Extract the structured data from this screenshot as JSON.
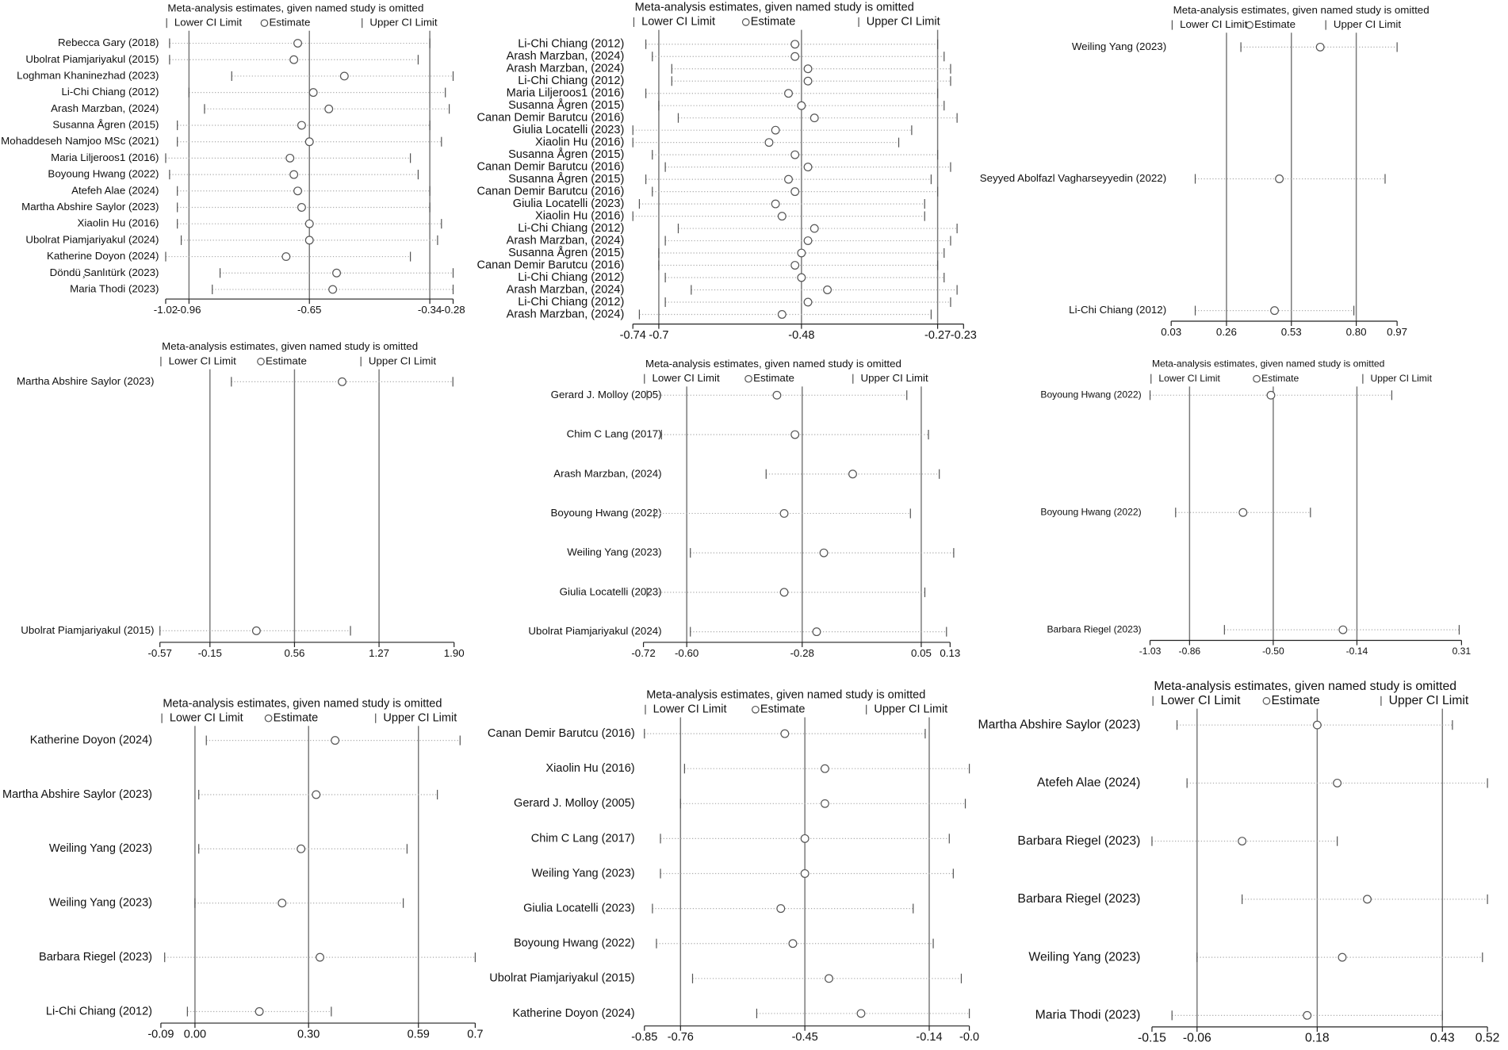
{
  "chart_data": [
    {
      "type": "forest",
      "title": "Meta-analysis estimates, given named study is omitted",
      "categories": [
        "Rebecca Gary (2018)",
        "Ubolrat Piamjariyakul (2015)",
        "Loghman Khaninezhad (2023)",
        "Li-Chi Chiang (2012)",
        "Arash Marzban, (2024)",
        "Susanna Ågren (2015)",
        "Mohaddeseh Namjoo MSc (2021)",
        "Maria Liljeroos1 (2016)",
        "Boyoung Hwang (2022)",
        "Atefeh Alae (2024)",
        "Martha Abshire Saylor (2023)",
        "Xiaolin Hu (2016)",
        "Ubolrat Piamjariyakul (2024)",
        "Katherine Doyon (2024)",
        "Döndü ̧Sanlıtürk (2023)",
        "Maria Thodi (2023)"
      ],
      "series": [
        {
          "name": "Lower CI Limit",
          "values": [
            -1.01,
            -1.01,
            -0.85,
            -0.96,
            -0.92,
            -0.99,
            -0.99,
            -1.02,
            -1.01,
            -0.99,
            -0.99,
            -0.99,
            -0.98,
            -1.02,
            -0.88,
            -0.9
          ]
        },
        {
          "name": "Estimate",
          "values": [
            -0.68,
            -0.69,
            -0.56,
            -0.64,
            -0.6,
            -0.67,
            -0.65,
            -0.7,
            -0.69,
            -0.68,
            -0.67,
            -0.65,
            -0.65,
            -0.71,
            -0.58,
            -0.59
          ]
        },
        {
          "name": "Upper CI Limit",
          "values": [
            -0.34,
            -0.37,
            -0.28,
            -0.3,
            -0.29,
            -0.34,
            -0.31,
            -0.39,
            -0.37,
            -0.34,
            -0.34,
            -0.31,
            -0.32,
            -0.39,
            -0.28,
            -0.28
          ]
        }
      ],
      "xlim": [
        -1.02,
        -0.28
      ],
      "xticks": [
        -1.02,
        -0.96,
        -0.65,
        -0.34,
        -0.28
      ]
    },
    {
      "type": "forest",
      "title": "Meta-analysis estimates, given named study is omitted",
      "categories": [
        "Li-Chi Chiang (2012)",
        "Arash Marzban, (2024)",
        "Arash Marzban, (2024)",
        "Li-Chi Chiang (2012)",
        "Maria Liljeroos1 (2016)",
        "Susanna Ågren (2015)",
        "Canan Demir Barutcu (2016)",
        "Giulia Locatelli (2023)",
        "Xiaolin Hu (2016)",
        "Susanna Ågren (2015)",
        "Canan Demir Barutcu (2016)",
        "Susanna Ågren (2015)",
        "Canan Demir Barutcu (2016)",
        "Giulia Locatelli (2023)",
        "Xiaolin Hu (2016)",
        "Li-Chi Chiang (2012)",
        "Arash Marzban, (2024)",
        "Susanna Ågren (2015)",
        "Canan Demir Barutcu (2016)",
        "Li-Chi Chiang (2012)",
        "Arash Marzban, (2024)",
        "Li-Chi Chiang (2012)",
        "Arash Marzban, (2024)"
      ],
      "series": [
        {
          "name": "Lower CI Limit",
          "values": [
            -0.72,
            -0.71,
            -0.68,
            -0.68,
            -0.72,
            -0.7,
            -0.67,
            -0.74,
            -0.74,
            -0.71,
            -0.69,
            -0.72,
            -0.71,
            -0.73,
            -0.74,
            -0.67,
            -0.69,
            -0.7,
            -0.7,
            -0.69,
            -0.65,
            -0.69,
            -0.73
          ]
        },
        {
          "name": "Estimate",
          "values": [
            -0.49,
            -0.49,
            -0.47,
            -0.47,
            -0.5,
            -0.48,
            -0.46,
            -0.52,
            -0.53,
            -0.49,
            -0.47,
            -0.5,
            -0.49,
            -0.52,
            -0.51,
            -0.46,
            -0.47,
            -0.48,
            -0.49,
            -0.48,
            -0.44,
            -0.47,
            -0.51
          ]
        },
        {
          "name": "Upper CI Limit",
          "values": [
            -0.27,
            -0.26,
            -0.25,
            -0.25,
            -0.27,
            -0.26,
            -0.24,
            -0.31,
            -0.33,
            -0.27,
            -0.25,
            -0.28,
            -0.27,
            -0.29,
            -0.29,
            -0.24,
            -0.25,
            -0.26,
            -0.27,
            -0.26,
            -0.24,
            -0.25,
            -0.28
          ]
        }
      ],
      "xlim": [
        -0.74,
        -0.23
      ],
      "xticks": [
        -0.74,
        -0.7,
        -0.48,
        -0.27,
        -0.23
      ]
    },
    {
      "type": "forest",
      "title": "Meta-analysis estimates, given named study is omitted",
      "categories": [
        "Weiling Yang (2023)",
        "Seyyed Abolfazl Vagharseyyedin (2022)",
        "Li-Chi Chiang (2012)"
      ],
      "series": [
        {
          "name": "Lower CI Limit",
          "values": [
            0.32,
            0.13,
            0.13
          ]
        },
        {
          "name": "Estimate",
          "values": [
            0.65,
            0.48,
            0.46
          ]
        },
        {
          "name": "Upper CI Limit",
          "values": [
            0.97,
            0.92,
            0.79
          ]
        }
      ],
      "xlim": [
        0.03,
        0.97
      ],
      "xticks": [
        0.03,
        0.26,
        0.53,
        {
          "value": 0.8,
          "label": "0.80"
        },
        0.97
      ]
    },
    {
      "type": "forest",
      "title": "Meta-analysis estimates, given named study is omitted",
      "categories": [
        "Martha Abshire Saylor (2023)",
        "Ubolrat Piamjariyakul (2015)"
      ],
      "series": [
        {
          "name": "Lower CI Limit",
          "values": [
            0.03,
            -0.57
          ]
        },
        {
          "name": "Estimate",
          "values": [
            0.96,
            0.24
          ]
        },
        {
          "name": "Upper CI Limit",
          "values": [
            1.89,
            1.03
          ]
        }
      ],
      "xlim": [
        -0.57,
        1.9
      ],
      "xticks": [
        -0.57,
        -0.15,
        0.56,
        1.27,
        {
          "value": 1.9,
          "label": "1.90"
        }
      ]
    },
    {
      "type": "forest",
      "title": "Meta-analysis estimates, given named study is omitted",
      "categories": [
        "Gerard J. Molloy (2005)",
        "Chim C Lang (2017)",
        "Arash Marzban, (2024)",
        "Boyoung Hwang (2022)",
        "Weiling Yang (2023)",
        "Giulia Locatelli (2023)",
        "Ubolrat Piamjariyakul (2024)"
      ],
      "series": [
        {
          "name": "Lower CI Limit",
          "values": [
            -0.71,
            -0.67,
            -0.38,
            -0.69,
            -0.59,
            -0.71,
            -0.59
          ]
        },
        {
          "name": "Estimate",
          "values": [
            -0.35,
            -0.3,
            -0.14,
            -0.33,
            -0.22,
            -0.33,
            -0.24
          ]
        },
        {
          "name": "Upper CI Limit",
          "values": [
            0.01,
            0.07,
            0.1,
            0.02,
            0.14,
            0.06,
            0.12
          ]
        }
      ],
      "xlim": [
        -0.72,
        0.13
      ],
      "xticks": [
        -0.72,
        {
          "value": -0.6,
          "label": "-0.60"
        },
        -0.28,
        0.05,
        0.13
      ]
    },
    {
      "type": "forest",
      "title": "Meta-analysis estimates, given named study is omitted",
      "categories": [
        "Boyoung Hwang (2022)",
        "Boyoung Hwang (2022)",
        "Barbara Riegel (2023)"
      ],
      "series": [
        {
          "name": "Lower CI Limit",
          "values": [
            -1.03,
            -0.92,
            -0.71
          ]
        },
        {
          "name": "Estimate",
          "values": [
            -0.51,
            -0.63,
            -0.2
          ]
        },
        {
          "name": "Upper CI Limit",
          "values": [
            0.01,
            -0.34,
            0.3
          ]
        }
      ],
      "xlim": [
        -1.03,
        0.31
      ],
      "xticks": [
        -1.03,
        -0.86,
        {
          "value": -0.5,
          "label": "-0.50"
        },
        -0.14,
        0.31
      ]
    },
    {
      "type": "forest",
      "title": "Meta-analysis estimates, given named study is omitted",
      "categories": [
        "Katherine Doyon (2024)",
        "Martha Abshire Saylor (2023)",
        "Weiling Yang (2023)",
        "Weiling Yang (2023)",
        "Barbara Riegel (2023)",
        "Li-Chi Chiang (2012)"
      ],
      "series": [
        {
          "name": "Lower CI Limit",
          "values": [
            0.03,
            0.01,
            0.01,
            0.0,
            -0.08,
            -0.02
          ]
        },
        {
          "name": "Estimate",
          "values": [
            0.37,
            0.32,
            0.28,
            0.23,
            0.33,
            0.17
          ]
        },
        {
          "name": "Upper CI Limit",
          "values": [
            0.7,
            0.64,
            0.56,
            0.55,
            0.74,
            0.36
          ]
        }
      ],
      "xlim": [
        -0.09,
        0.74
      ],
      "xticks": [
        -0.09,
        {
          "value": 0,
          "label": "0.00"
        },
        {
          "value": 0.3,
          "label": "0.30"
        },
        0.59,
        {
          "value": 0.74,
          "label": "0.7"
        }
      ]
    },
    {
      "type": "forest",
      "title": "Meta-analysis estimates, given named study is omitted",
      "categories": [
        "Canan Demir Barutcu (2016)",
        "Xiaolin Hu (2016)",
        "Gerard J. Molloy (2005)",
        "Chim C Lang (2017)",
        "Weiling Yang (2023)",
        "Giulia Locatelli (2023)",
        "Boyoung Hwang (2022)",
        "Ubolrat Piamjariyakul (2015)",
        "Katherine Doyon (2024)"
      ],
      "series": [
        {
          "name": "Lower CI Limit",
          "values": [
            -0.85,
            -0.75,
            -0.76,
            -0.81,
            -0.81,
            -0.83,
            -0.82,
            -0.73,
            -0.57
          ]
        },
        {
          "name": "Estimate",
          "values": [
            -0.5,
            -0.4,
            -0.4,
            -0.45,
            -0.45,
            -0.51,
            -0.48,
            -0.39,
            -0.31
          ]
        },
        {
          "name": "Upper CI Limit",
          "values": [
            -0.15,
            -0.04,
            -0.05,
            -0.09,
            -0.08,
            -0.18,
            -0.13,
            -0.06,
            -0.04
          ]
        }
      ],
      "xlim": [
        -0.85,
        -0.04
      ],
      "xticks": [
        -0.85,
        -0.76,
        -0.45,
        -0.14,
        {
          "value": -0.04,
          "label": "-0.0"
        }
      ]
    },
    {
      "type": "forest",
      "title": "Meta-analysis estimates, given named study is omitted",
      "categories": [
        "Martha Abshire Saylor (2023)",
        "Atefeh Alae (2024)",
        "Barbara Riegel (2023)",
        "Barbara Riegel (2023)",
        "Weiling Yang (2023)",
        "Maria Thodi (2023)"
      ],
      "series": [
        {
          "name": "Lower CI Limit",
          "values": [
            -0.1,
            -0.08,
            -0.15,
            0.03,
            -0.06,
            -0.11
          ]
        },
        {
          "name": "Estimate",
          "values": [
            0.18,
            0.22,
            0.03,
            0.28,
            0.23,
            0.16
          ]
        },
        {
          "name": "Upper CI Limit",
          "values": [
            0.45,
            0.52,
            0.22,
            0.52,
            0.51,
            0.43
          ]
        }
      ],
      "xlim": [
        -0.15,
        0.52
      ],
      "xticks": [
        -0.15,
        -0.06,
        0.18,
        0.43,
        0.52
      ]
    }
  ]
}
